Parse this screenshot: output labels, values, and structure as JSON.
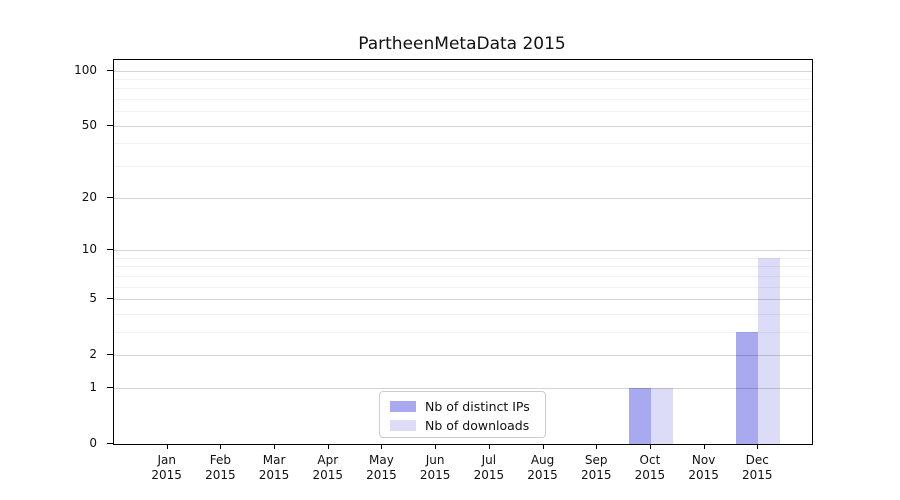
{
  "chart_data": {
    "type": "bar",
    "title": "PartheenMetaData 2015",
    "categories": [
      "Jan",
      "Feb",
      "Mar",
      "Apr",
      "May",
      "Jun",
      "Jul",
      "Aug",
      "Sep",
      "Oct",
      "Nov",
      "Dec"
    ],
    "category_year": "2015",
    "series": [
      {
        "name": "Nb of distinct IPs",
        "color": "#a9a9f0",
        "values": [
          0,
          0,
          0,
          0,
          0,
          0,
          0,
          0,
          0,
          1,
          0,
          3
        ]
      },
      {
        "name": "Nb of downloads",
        "color": "#dcdcf8",
        "values": [
          0,
          0,
          0,
          0,
          0,
          0,
          0,
          0,
          0,
          1,
          0,
          9
        ]
      }
    ],
    "xlabel": "",
    "ylabel": "",
    "yscale": "log10(1+value)",
    "y_major_ticks": [
      0,
      1,
      2,
      5,
      10,
      20,
      50,
      100
    ],
    "y_minor_gridlines": [
      3,
      4,
      6,
      7,
      8,
      9,
      30,
      40,
      60,
      70,
      80,
      90
    ],
    "ylim": [
      0,
      114
    ],
    "grid": "on",
    "legend_position": "inside bottom-center",
    "colors": {
      "major_grid": "rgba(0,0,0,0.17)",
      "minor_grid": "rgba(0,0,0,0.055)",
      "spine": "#000000",
      "background": "#ffffff"
    }
  }
}
